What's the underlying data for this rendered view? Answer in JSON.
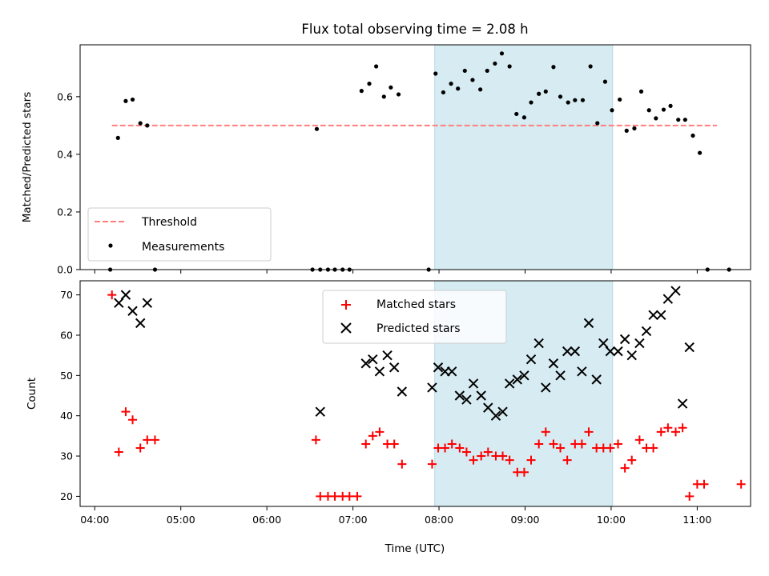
{
  "chart_data": {
    "title": "Flux total observing time = 2.08 h",
    "x_label": "Time (UTC)",
    "x_ticks": [
      "04:00",
      "05:00",
      "06:00",
      "07:00",
      "08:00",
      "09:00",
      "10:00",
      "11:00"
    ],
    "x_range_hours": [
      3.83,
      11.62
    ],
    "highlight_span": {
      "start": "07:57",
      "end": "10:01",
      "color": "#add8e6"
    },
    "panels": [
      {
        "type": "scatter",
        "ylabel": "Matched/Predicted stars",
        "ylim": [
          0,
          0.78
        ],
        "y_ticks": [
          0.0,
          0.2,
          0.4,
          0.6
        ],
        "y_tick_labels": [
          "0.0",
          "0.2",
          "0.4",
          "0.6"
        ],
        "legend_position": "lower-left",
        "threshold": {
          "name": "Threshold",
          "value": 0.5,
          "x_start": 4.2,
          "x_end": 11.23,
          "color": "#ff7f7f",
          "style": "dashed"
        },
        "series": [
          {
            "name": "Measurements",
            "color": "#000000",
            "marker": "dot",
            "points": [
              [
                4.18,
                0.0
              ],
              [
                4.27,
                0.457
              ],
              [
                4.36,
                0.585
              ],
              [
                4.44,
                0.59
              ],
              [
                4.53,
                0.508
              ],
              [
                4.61,
                0.5
              ],
              [
                4.7,
                0.0
              ],
              [
                6.58,
                0.488
              ],
              [
                6.53,
                0.0
              ],
              [
                6.62,
                0.0
              ],
              [
                6.71,
                0.0
              ],
              [
                6.79,
                0.0
              ],
              [
                6.88,
                0.0
              ],
              [
                6.96,
                0.0
              ],
              [
                7.1,
                0.62
              ],
              [
                7.19,
                0.645
              ],
              [
                7.27,
                0.705
              ],
              [
                7.36,
                0.6
              ],
              [
                7.44,
                0.632
              ],
              [
                7.53,
                0.608
              ],
              [
                7.88,
                0.0
              ],
              [
                7.96,
                0.68
              ],
              [
                8.05,
                0.615
              ],
              [
                8.14,
                0.645
              ],
              [
                8.22,
                0.628
              ],
              [
                8.3,
                0.69
              ],
              [
                8.39,
                0.658
              ],
              [
                8.48,
                0.625
              ],
              [
                8.56,
                0.69
              ],
              [
                8.65,
                0.715
              ],
              [
                8.73,
                0.75
              ],
              [
                8.82,
                0.705
              ],
              [
                8.9,
                0.54
              ],
              [
                8.99,
                0.528
              ],
              [
                9.07,
                0.58
              ],
              [
                9.16,
                0.61
              ],
              [
                9.24,
                0.618
              ],
              [
                9.33,
                0.703
              ],
              [
                9.41,
                0.6
              ],
              [
                9.5,
                0.58
              ],
              [
                9.58,
                0.588
              ],
              [
                9.67,
                0.588
              ],
              [
                9.76,
                0.705
              ],
              [
                9.84,
                0.508
              ],
              [
                9.93,
                0.652
              ],
              [
                10.01,
                0.553
              ],
              [
                10.1,
                0.59
              ],
              [
                10.18,
                0.482
              ],
              [
                10.27,
                0.49
              ],
              [
                10.35,
                0.618
              ],
              [
                10.44,
                0.553
              ],
              [
                10.52,
                0.525
              ],
              [
                10.61,
                0.555
              ],
              [
                10.69,
                0.568
              ],
              [
                10.78,
                0.52
              ],
              [
                10.86,
                0.52
              ],
              [
                10.95,
                0.465
              ],
              [
                11.03,
                0.405
              ],
              [
                11.12,
                0.0
              ],
              [
                11.37,
                0.0
              ]
            ]
          }
        ]
      },
      {
        "type": "scatter",
        "ylabel": "Count",
        "ylim": [
          17.5,
          73.5
        ],
        "y_ticks": [
          20,
          30,
          40,
          50,
          60,
          70
        ],
        "y_tick_labels": [
          "20",
          "30",
          "40",
          "50",
          "60",
          "70"
        ],
        "legend_position": "upper-center",
        "series": [
          {
            "name": "Matched stars",
            "color": "#ff0000",
            "marker": "plus",
            "points": [
              [
                4.2,
                70
              ],
              [
                4.28,
                31
              ],
              [
                4.36,
                41
              ],
              [
                4.44,
                39
              ],
              [
                4.53,
                32
              ],
              [
                4.61,
                34
              ],
              [
                4.7,
                34
              ],
              [
                6.57,
                34
              ],
              [
                6.62,
                20
              ],
              [
                6.71,
                20
              ],
              [
                6.79,
                20
              ],
              [
                6.88,
                20
              ],
              [
                6.96,
                20
              ],
              [
                7.05,
                20
              ],
              [
                7.15,
                33
              ],
              [
                7.23,
                35
              ],
              [
                7.31,
                36
              ],
              [
                7.4,
                33
              ],
              [
                7.48,
                33
              ],
              [
                7.57,
                28
              ],
              [
                7.92,
                28
              ],
              [
                7.99,
                32
              ],
              [
                8.07,
                32
              ],
              [
                8.15,
                33
              ],
              [
                8.24,
                32
              ],
              [
                8.32,
                31
              ],
              [
                8.4,
                29
              ],
              [
                8.49,
                30
              ],
              [
                8.57,
                31
              ],
              [
                8.66,
                30
              ],
              [
                8.74,
                30
              ],
              [
                8.82,
                29
              ],
              [
                8.91,
                26
              ],
              [
                8.99,
                26
              ],
              [
                9.07,
                29
              ],
              [
                9.16,
                33
              ],
              [
                9.24,
                36
              ],
              [
                9.33,
                33
              ],
              [
                9.41,
                32
              ],
              [
                9.49,
                29
              ],
              [
                9.58,
                33
              ],
              [
                9.66,
                33
              ],
              [
                9.74,
                36
              ],
              [
                9.83,
                32
              ],
              [
                9.91,
                32
              ],
              [
                9.99,
                32
              ],
              [
                10.08,
                33
              ],
              [
                10.16,
                27
              ],
              [
                10.24,
                29
              ],
              [
                10.33,
                34
              ],
              [
                10.41,
                32
              ],
              [
                10.49,
                32
              ],
              [
                10.58,
                36
              ],
              [
                10.66,
                37
              ],
              [
                10.75,
                36
              ],
              [
                10.83,
                37
              ],
              [
                10.91,
                20
              ],
              [
                11.0,
                23
              ],
              [
                11.08,
                23
              ],
              [
                11.51,
                23
              ]
            ]
          },
          {
            "name": "Predicted stars",
            "color": "#000000",
            "marker": "x",
            "points": [
              [
                4.28,
                68
              ],
              [
                4.36,
                70
              ],
              [
                4.44,
                66
              ],
              [
                4.53,
                63
              ],
              [
                4.61,
                68
              ],
              [
                6.62,
                41
              ],
              [
                7.15,
                53
              ],
              [
                7.23,
                54
              ],
              [
                7.31,
                51
              ],
              [
                7.4,
                55
              ],
              [
                7.48,
                52
              ],
              [
                7.57,
                46
              ],
              [
                7.92,
                47
              ],
              [
                7.99,
                52
              ],
              [
                8.07,
                51
              ],
              [
                8.15,
                51
              ],
              [
                8.24,
                45
              ],
              [
                8.32,
                44
              ],
              [
                8.4,
                48
              ],
              [
                8.49,
                45
              ],
              [
                8.57,
                42
              ],
              [
                8.66,
                40
              ],
              [
                8.74,
                41
              ],
              [
                8.82,
                48
              ],
              [
                8.91,
                49
              ],
              [
                8.99,
                50
              ],
              [
                9.07,
                54
              ],
              [
                9.16,
                58
              ],
              [
                9.24,
                47
              ],
              [
                9.33,
                53
              ],
              [
                9.41,
                50
              ],
              [
                9.49,
                56
              ],
              [
                9.58,
                56
              ],
              [
                9.66,
                51
              ],
              [
                9.74,
                63
              ],
              [
                9.83,
                49
              ],
              [
                9.91,
                58
              ],
              [
                9.99,
                56
              ],
              [
                10.08,
                56
              ],
              [
                10.16,
                59
              ],
              [
                10.24,
                55
              ],
              [
                10.33,
                58
              ],
              [
                10.41,
                61
              ],
              [
                10.49,
                65
              ],
              [
                10.58,
                65
              ],
              [
                10.66,
                69
              ],
              [
                10.75,
                71
              ],
              [
                10.83,
                43
              ],
              [
                10.91,
                57
              ]
            ]
          }
        ]
      }
    ]
  }
}
